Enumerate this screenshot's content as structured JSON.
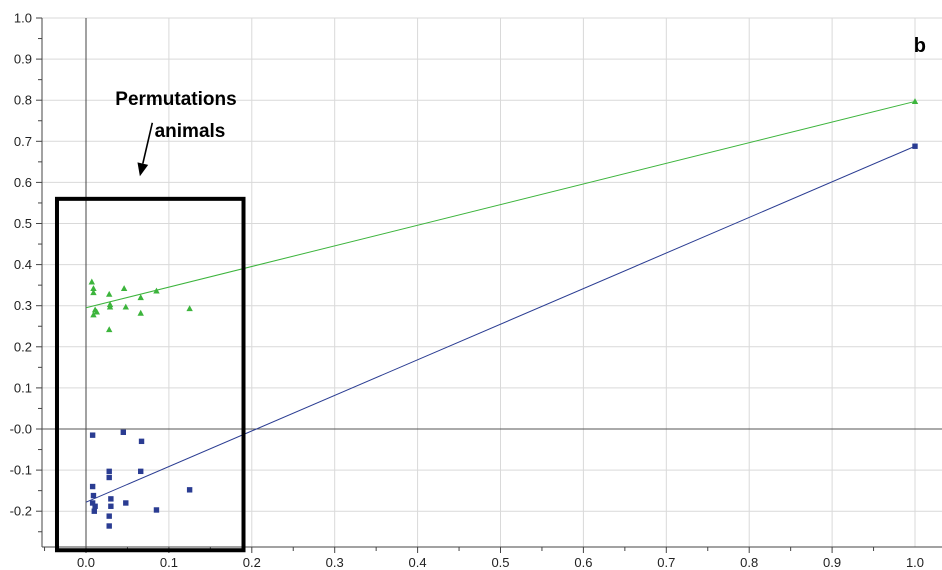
{
  "chart_data": {
    "type": "scatter",
    "panel_label": "b",
    "xlim": [
      -0.05,
      1.0
    ],
    "ylim": [
      -0.3,
      1.0
    ],
    "x_ticks": [
      0.0,
      0.1,
      0.2,
      0.3,
      0.4,
      0.5,
      0.6,
      0.7,
      0.8,
      0.9,
      1.0
    ],
    "x_tick_labels": [
      "0.0",
      "0.1",
      "0.2",
      "0.3",
      "0.4",
      "0.5",
      "0.6",
      "0.7",
      "0.8",
      "0.9",
      "1.0"
    ],
    "y_ticks": [
      1.0,
      0.9,
      0.8,
      0.7,
      0.6,
      0.5,
      0.4,
      0.3,
      0.2,
      0.1,
      0.0,
      -0.1,
      -0.2
    ],
    "y_tick_labels": [
      "1.0",
      "0.9",
      "0.8",
      "0.7",
      "0.6",
      "0.5",
      "0.4",
      "0.3",
      "0.2",
      "0.1",
      "-0.0",
      "-0.1",
      "-0.2"
    ],
    "grid": true,
    "annotation": {
      "lines": [
        "Permutations",
        "animals"
      ],
      "box_x": [
        -0.035,
        0.19
      ],
      "box_y": [
        -0.295,
        0.56
      ],
      "arrow_from": [
        0.08,
        0.745
      ],
      "arrow_to": [
        0.065,
        0.615
      ]
    },
    "series": [
      {
        "marker": "triangle",
        "color": "#3cb43c",
        "points": [
          [
            0.007,
            0.358
          ],
          [
            0.009,
            0.342
          ],
          [
            0.009,
            0.332
          ],
          [
            0.011,
            0.29
          ],
          [
            0.009,
            0.278
          ],
          [
            0.013,
            0.285
          ],
          [
            0.028,
            0.328
          ],
          [
            0.029,
            0.303
          ],
          [
            0.029,
            0.297
          ],
          [
            0.028,
            0.242
          ],
          [
            0.046,
            0.342
          ],
          [
            0.048,
            0.297
          ],
          [
            0.066,
            0.32
          ],
          [
            0.066,
            0.282
          ],
          [
            0.085,
            0.336
          ],
          [
            0.125,
            0.293
          ],
          [
            1.0,
            0.797
          ]
        ],
        "regression": [
          [
            0.0,
            0.295
          ],
          [
            1.0,
            0.797
          ]
        ]
      },
      {
        "marker": "square",
        "color": "#2a3c92",
        "points": [
          [
            0.008,
            -0.015
          ],
          [
            0.045,
            -0.008
          ],
          [
            0.067,
            -0.03
          ],
          [
            0.008,
            -0.14
          ],
          [
            0.009,
            -0.162
          ],
          [
            0.008,
            -0.18
          ],
          [
            0.011,
            -0.188
          ],
          [
            0.01,
            -0.2
          ],
          [
            0.028,
            -0.103
          ],
          [
            0.028,
            -0.118
          ],
          [
            0.03,
            -0.17
          ],
          [
            0.03,
            -0.188
          ],
          [
            0.028,
            -0.212
          ],
          [
            0.028,
            -0.236
          ],
          [
            0.048,
            -0.18
          ],
          [
            0.066,
            -0.103
          ],
          [
            0.085,
            -0.197
          ],
          [
            0.125,
            -0.148
          ],
          [
            1.0,
            0.688
          ]
        ],
        "regression": [
          [
            0.0,
            -0.178
          ],
          [
            1.0,
            0.688
          ]
        ]
      }
    ]
  }
}
